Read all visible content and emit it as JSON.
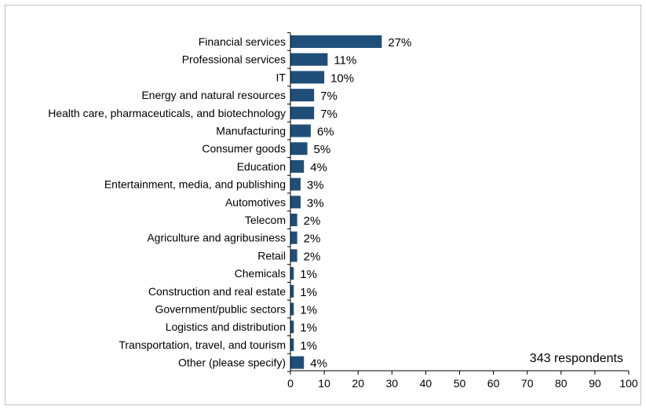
{
  "chart_data": {
    "type": "bar",
    "orientation": "horizontal",
    "categories": [
      "Financial services",
      "Professional services",
      "IT",
      "Energy and natural resources",
      "Health care, pharmaceuticals, and biotechnology",
      "Manufacturing",
      "Consumer goods",
      "Education",
      "Entertainment, media, and publishing",
      "Automotives",
      "Telecom",
      "Agriculture and agribusiness",
      "Retail",
      "Chemicals",
      "Construction and real estate",
      "Government/public sectors",
      "Logistics and distribution",
      "Transportation, travel, and tourism",
      "Other (please specify)"
    ],
    "values": [
      27,
      11,
      10,
      7,
      7,
      6,
      5,
      4,
      3,
      3,
      2,
      2,
      2,
      1,
      1,
      1,
      1,
      1,
      4
    ],
    "value_labels": [
      "27%",
      "11%",
      "10%",
      "7%",
      "7%",
      "6%",
      "5%",
      "4%",
      "3%",
      "3%",
      "2%",
      "2%",
      "2%",
      "1%",
      "1%",
      "1%",
      "1%",
      "1%",
      "4%"
    ],
    "xlim": [
      0,
      100
    ],
    "xticks": [
      "0",
      "10",
      "20",
      "30",
      "40",
      "50",
      "60",
      "70",
      "80",
      "90",
      "100"
    ],
    "xlabel": "",
    "ylabel": "",
    "title": "",
    "grid": false,
    "bar_color": "#1f4e79",
    "annotation": "343 respondents"
  }
}
